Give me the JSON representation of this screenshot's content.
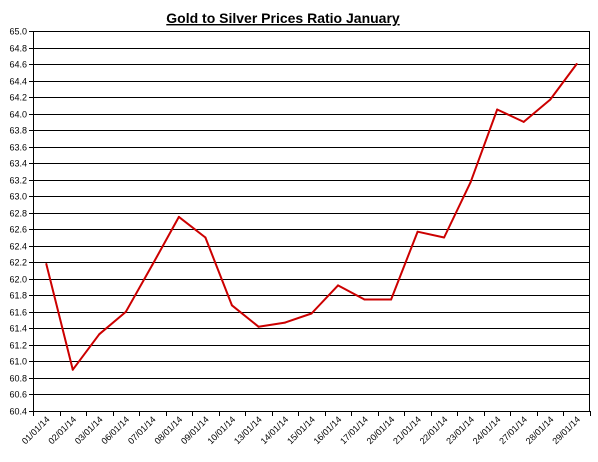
{
  "chart_data": {
    "type": "line",
    "title": "Gold to Silver Prices Ratio January",
    "xlabel": "",
    "ylabel": "",
    "x": [
      "01/01/14",
      "02/01/14",
      "03/01/14",
      "06/01/14",
      "07/01/14",
      "08/01/14",
      "09/01/14",
      "10/01/14",
      "13/01/14",
      "14/01/14",
      "15/01/14",
      "16/01/14",
      "17/01/14",
      "20/01/14",
      "21/01/14",
      "22/01/14",
      "23/01/14",
      "24/01/14",
      "27/01/14",
      "28/01/14",
      "29/01/14"
    ],
    "series": [
      {
        "name": "",
        "color": "#cc0000",
        "values": [
          62.18,
          60.9,
          61.33,
          61.6,
          62.17,
          62.75,
          62.5,
          61.68,
          61.42,
          61.47,
          61.58,
          61.92,
          61.75,
          61.75,
          62.57,
          62.5,
          63.17,
          64.05,
          63.9,
          64.17,
          64.6
        ]
      }
    ],
    "ylim": [
      60.4,
      65.0
    ],
    "ytick_step": 0.2,
    "yticks": [
      "60.4",
      "60.6",
      "60.8",
      "61.0",
      "61.2",
      "61.4",
      "61.6",
      "61.8",
      "62.0",
      "62.2",
      "62.4",
      "62.6",
      "62.8",
      "63.0",
      "63.2",
      "63.4",
      "63.6",
      "63.8",
      "64.0",
      "64.2",
      "64.4",
      "64.6",
      "64.8",
      "65.0"
    ],
    "grid": "horizontal",
    "legend": "none"
  }
}
